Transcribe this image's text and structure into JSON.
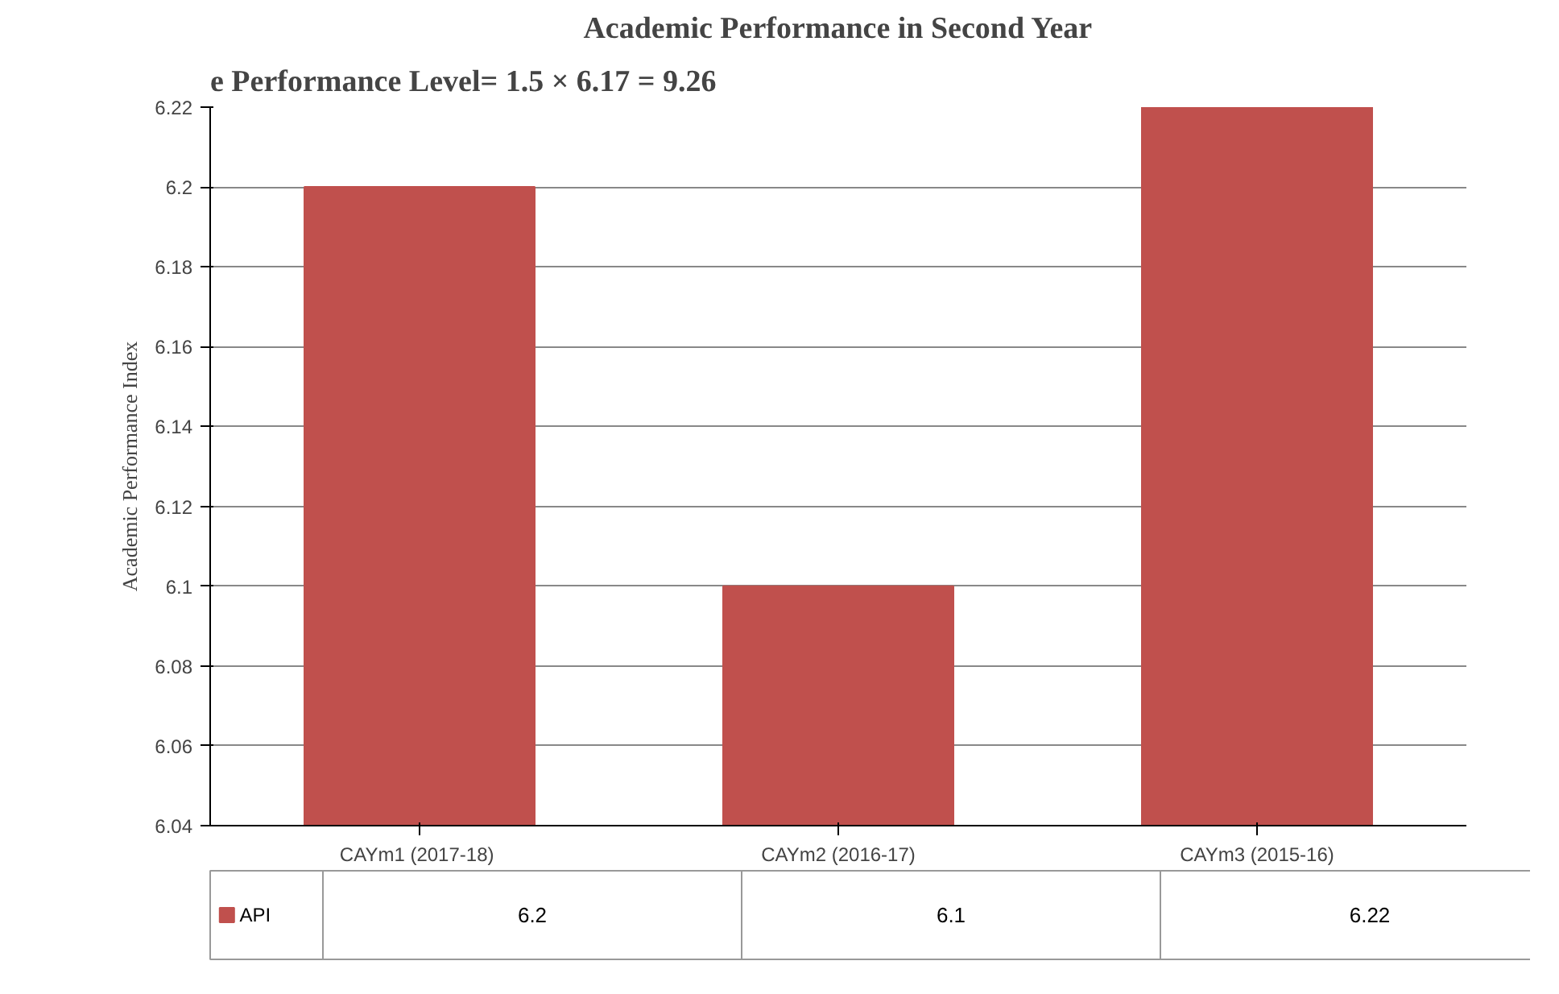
{
  "chart_data": {
    "type": "bar",
    "title": "Academic Performance in Second Year",
    "ylabel": "Academic Performance Index",
    "annotations": [
      "e Performance Level= 1.5 × 6.17 = 9.26"
    ],
    "categories": [
      "CAYm1  (2017-18)",
      "CAYm2 (2016-17)",
      "CAYm3 (2015-16)"
    ],
    "series": [
      {
        "name": "API",
        "color": "#c0504d",
        "values": [
          6.2,
          6.1,
          6.22
        ]
      }
    ],
    "ylim": [
      6.04,
      6.22
    ],
    "yticks": [
      6.04,
      6.06,
      6.08,
      6.1,
      6.12,
      6.14,
      6.16,
      6.18,
      6.2,
      6.22
    ],
    "grid": "y",
    "legend": "bottom",
    "data_labels": true
  }
}
